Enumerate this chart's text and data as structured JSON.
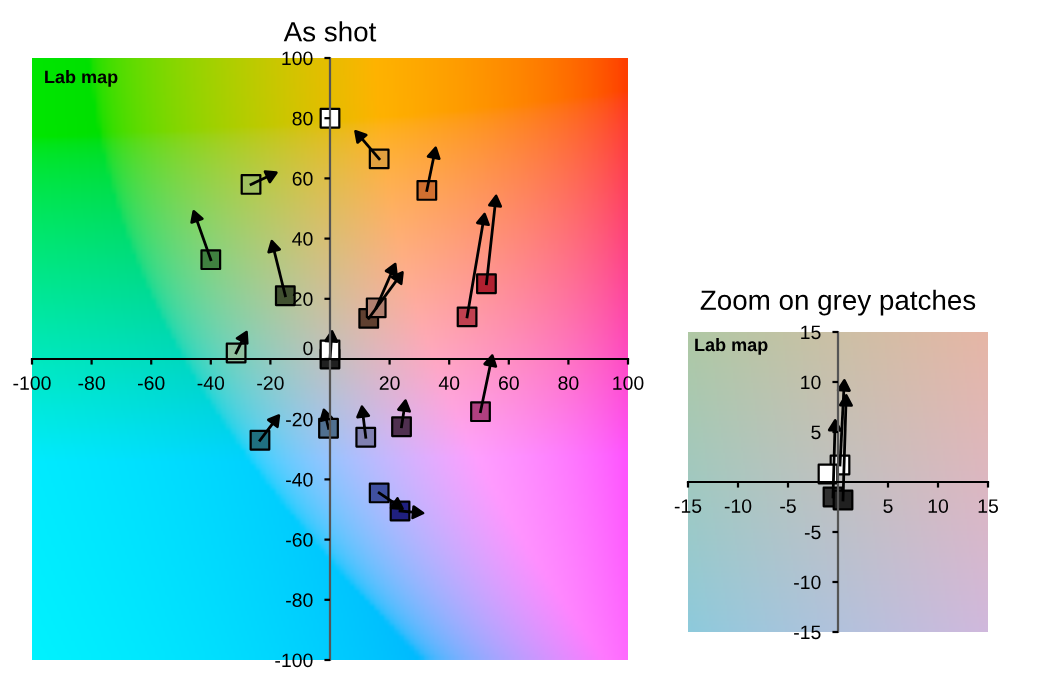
{
  "chart_data": [
    {
      "type": "scatter",
      "title": "As shot",
      "annotations": [
        "Lab map"
      ],
      "xlim": [
        -100,
        100
      ],
      "ylim": [
        -100,
        100
      ],
      "xticks": [
        -100,
        -80,
        -60,
        -40,
        -20,
        20,
        40,
        60,
        80,
        100
      ],
      "yticks": [
        -100,
        -80,
        -60,
        -40,
        -20,
        0,
        20,
        40,
        60,
        80,
        100
      ],
      "grid": false,
      "legend": false,
      "marker": "square",
      "series": [
        {
          "type": "scatter",
          "x": [
            0,
            16.5,
            32.5,
            -26.5,
            -40,
            -15,
            13,
            15.5,
            46,
            52.5,
            -31.5,
            0,
            0,
            50.5,
            -23.5,
            -0.5,
            12,
            24,
            16.5,
            23.5
          ],
          "values": [
            80,
            66.5,
            56,
            58,
            33,
            21,
            13.5,
            17,
            14,
            25,
            2,
            0,
            3,
            -17.5,
            -27,
            -23,
            -26,
            -22.5,
            -44.5,
            -50.5
          ],
          "colors": [
            "#ffffff",
            "#e0a040",
            "#d07030",
            "#a0c060",
            "#408040",
            "#405030",
            "#604030",
            "#b08070",
            "#c04050",
            "#b02030",
            "#90c0a0",
            "#202020",
            "#ffffff",
            "#b04080",
            "#207080",
            "#507090",
            "#8080b0",
            "#503050",
            "#4050a0",
            "#202080"
          ]
        },
        {
          "type": "line",
          "x": [
            16.5,
            10
          ],
          "values": [
            66.5,
            74
          ],
          "color": "#000000",
          "marker": "triangle"
        },
        {
          "type": "line",
          "x": [
            32.5,
            35
          ],
          "values": [
            56,
            68
          ],
          "color": "#000000",
          "marker": "triangle"
        },
        {
          "type": "line",
          "x": [
            -26.5,
            -20
          ],
          "values": [
            58,
            61
          ],
          "color": "#000000",
          "marker": "triangle"
        },
        {
          "type": "line",
          "x": [
            -40,
            -45
          ],
          "values": [
            33,
            47
          ],
          "color": "#000000",
          "marker": "triangle"
        },
        {
          "type": "line",
          "x": [
            -15,
            -19
          ],
          "values": [
            21,
            37
          ],
          "color": "#000000",
          "marker": "triangle"
        },
        {
          "type": "line",
          "x": [
            13,
            23
          ],
          "values": [
            13.5,
            27
          ],
          "color": "#000000",
          "marker": "triangle"
        },
        {
          "type": "line",
          "x": [
            15.5,
            21
          ],
          "values": [
            17,
            29.5
          ],
          "color": "#000000",
          "marker": "triangle"
        },
        {
          "type": "line",
          "x": [
            46,
            51.5
          ],
          "values": [
            14,
            46
          ],
          "color": "#000000",
          "marker": "triangle"
        },
        {
          "type": "line",
          "x": [
            52.5,
            55.5
          ],
          "values": [
            25,
            52
          ],
          "color": "#000000",
          "marker": "triangle"
        },
        {
          "type": "line",
          "x": [
            -31.5,
            -29
          ],
          "values": [
            2,
            7
          ],
          "color": "#000000",
          "marker": "triangle"
        },
        {
          "type": "line",
          "x": [
            0,
            0.5
          ],
          "values": [
            0,
            7
          ],
          "color": "#000000",
          "marker": "triangle"
        },
        {
          "type": "line",
          "x": [
            50.5,
            54
          ],
          "values": [
            -17.5,
            -1
          ],
          "color": "#000000",
          "marker": "triangle"
        },
        {
          "type": "line",
          "x": [
            -23.5,
            -18.5
          ],
          "values": [
            -27,
            -20.5
          ],
          "color": "#000000",
          "marker": "triangle"
        },
        {
          "type": "line",
          "x": [
            -0.5,
            -1.5
          ],
          "values": [
            -23,
            -19
          ],
          "color": "#000000",
          "marker": "triangle"
        },
        {
          "type": "line",
          "x": [
            12,
            11
          ],
          "values": [
            -26,
            -18
          ],
          "color": "#000000",
          "marker": "triangle"
        },
        {
          "type": "line",
          "x": [
            24,
            25
          ],
          "values": [
            -22.5,
            -16
          ],
          "color": "#000000",
          "marker": "triangle"
        },
        {
          "type": "line",
          "x": [
            16.5,
            22.5
          ],
          "values": [
            -44.5,
            -48.5
          ],
          "color": "#000000",
          "marker": "triangle"
        },
        {
          "type": "line",
          "x": [
            23.5,
            29
          ],
          "values": [
            -50.5,
            -51
          ],
          "color": "#000000",
          "marker": "triangle"
        }
      ]
    },
    {
      "type": "scatter",
      "title": "Zoom on grey patches",
      "annotations": [
        "Lab map"
      ],
      "xlim": [
        -15,
        15
      ],
      "ylim": [
        -15,
        15
      ],
      "xticks": [
        -15,
        -10,
        -5,
        5,
        10,
        15
      ],
      "yticks": [
        -15,
        -10,
        -5,
        5,
        10,
        15
      ],
      "grid": false,
      "legend": false,
      "marker": "square",
      "series": [
        {
          "type": "scatter",
          "x": [
            0.2,
            -1,
            -0.5,
            0.5
          ],
          "values": [
            1.7,
            0.8,
            -1.5,
            -1.8
          ],
          "colors": [
            "#ffffff",
            "#ffffff",
            "#303030",
            "#202020"
          ]
        },
        {
          "type": "line",
          "x": [
            0.2,
            0.6
          ],
          "values": [
            1.7,
            9.5
          ],
          "color": "#000000",
          "marker": "triangle"
        },
        {
          "type": "line",
          "x": [
            0.5,
            0.8
          ],
          "values": [
            -1.8,
            8
          ],
          "color": "#000000",
          "marker": "triangle"
        },
        {
          "type": "line",
          "x": [
            -0.5,
            -0.3
          ],
          "values": [
            -1.5,
            5.5
          ],
          "color": "#000000",
          "marker": "triangle"
        }
      ]
    }
  ]
}
